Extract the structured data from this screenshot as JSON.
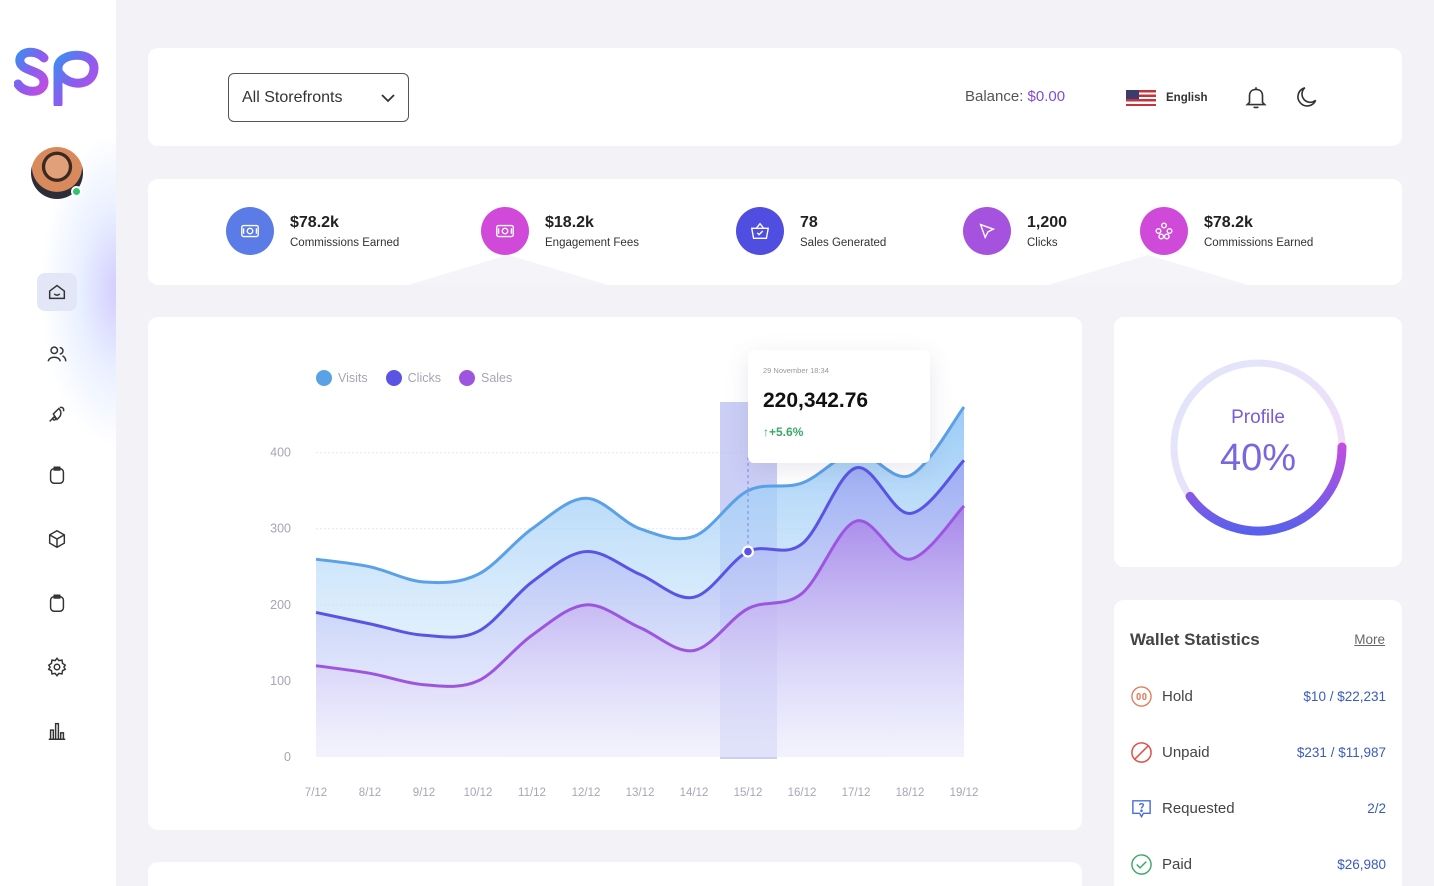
{
  "header": {
    "storefront_select": "All Storefronts",
    "balance_label": "Balance:",
    "balance_value": "$0.00",
    "language": "English"
  },
  "sidebar": {
    "items": [
      {
        "icon": "home-icon",
        "active": true
      },
      {
        "icon": "users-icon"
      },
      {
        "icon": "megaphone-icon"
      },
      {
        "icon": "clipboard-icon"
      },
      {
        "icon": "box-icon"
      },
      {
        "icon": "clipboard-icon"
      },
      {
        "icon": "gear-icon"
      },
      {
        "icon": "bar-chart-icon"
      }
    ]
  },
  "stats": [
    {
      "value": "$78.2k",
      "label": "Commissions Earned",
      "color": "#5b7be6",
      "icon": "money-icon"
    },
    {
      "value": "$18.2k",
      "label": "Engagement Fees",
      "color": "#d149d8",
      "icon": "money-icon"
    },
    {
      "value": "78",
      "label": "Sales Generated",
      "color": "#4f4ee0",
      "icon": "basket-icon"
    },
    {
      "value": "1,200",
      "label": "Clicks",
      "color": "#a552df",
      "icon": "cursor-icon"
    },
    {
      "value": "$78.2k",
      "label": "Commissions Earned",
      "color": "#d04ad9",
      "icon": "network-icon"
    }
  ],
  "chart_data": {
    "type": "area",
    "categories": [
      "7/12",
      "8/12",
      "9/12",
      "10/12",
      "11/12",
      "12/12",
      "13/12",
      "14/12",
      "15/12",
      "16/12",
      "17/12",
      "18/12",
      "19/12"
    ],
    "series": [
      {
        "name": "Visits",
        "color": "#5aa1e6",
        "values": [
          260,
          250,
          230,
          240,
          300,
          340,
          300,
          290,
          350,
          360,
          400,
          370,
          460
        ]
      },
      {
        "name": "Clicks",
        "color": "#5a54e4",
        "values": [
          190,
          175,
          160,
          165,
          230,
          270,
          240,
          210,
          270,
          280,
          380,
          320,
          390
        ]
      },
      {
        "name": "Sales",
        "color": "#9d55e0",
        "values": [
          120,
          110,
          95,
          100,
          160,
          200,
          170,
          140,
          195,
          215,
          310,
          260,
          330
        ]
      }
    ],
    "ylim": [
      0,
      460
    ],
    "yticks": [
      "0",
      "100",
      "200",
      "300",
      "400"
    ],
    "highlight_category": "15/12",
    "tooltip": {
      "date": "29 November 18:34",
      "value": "220,342.76",
      "change": "+5.6%"
    }
  },
  "profile": {
    "label": "Profile",
    "percent": "40%",
    "fraction": 0.4
  },
  "wallet": {
    "title": "Wallet Statistics",
    "more": "More",
    "rows": [
      {
        "name": "Hold",
        "amount": "$10 / $22,231",
        "icon": "hold-icon",
        "color": "#e07b5a"
      },
      {
        "name": "Unpaid",
        "amount": "$231 / $11,987",
        "icon": "unpaid-icon",
        "color": "#e0524a"
      },
      {
        "name": "Requested",
        "amount": "2/2",
        "icon": "requested-icon",
        "color": "#4a6fd6"
      },
      {
        "name": "Paid",
        "amount": "$26,980",
        "icon": "paid-icon",
        "color": "#3ba768"
      }
    ]
  }
}
